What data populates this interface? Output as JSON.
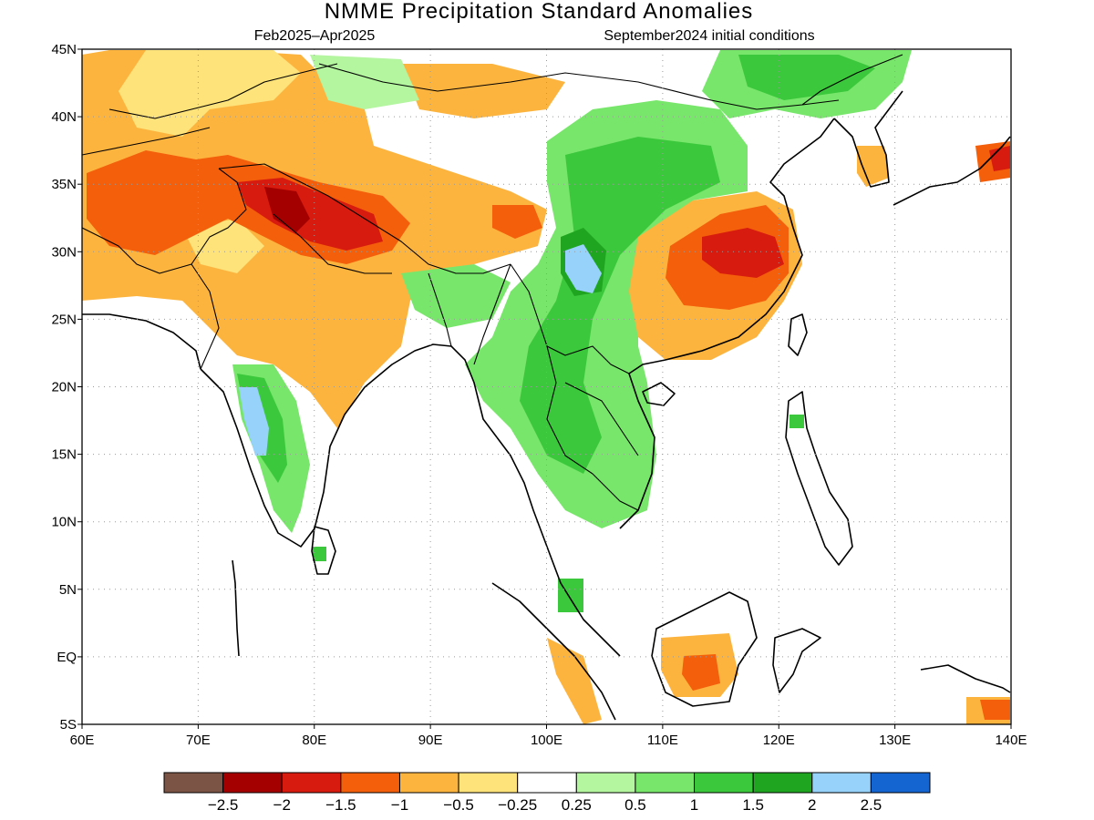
{
  "title": "NMME Precipitation Standard Anomalies",
  "subtitle_left": "Feb2025–Apr2025",
  "subtitle_right": "September2024 initial conditions",
  "map": {
    "lon_range": [
      60,
      140
    ],
    "lat_range": [
      -5,
      45
    ],
    "lon_ticks": [
      {
        "value": 60,
        "label": "60E"
      },
      {
        "value": 70,
        "label": "70E"
      },
      {
        "value": 80,
        "label": "80E"
      },
      {
        "value": 90,
        "label": "90E"
      },
      {
        "value": 100,
        "label": "100E"
      },
      {
        "value": 110,
        "label": "110E"
      },
      {
        "value": 120,
        "label": "120E"
      },
      {
        "value": 130,
        "label": "130E"
      },
      {
        "value": 140,
        "label": "140E"
      }
    ],
    "lat_ticks": [
      {
        "value": 45,
        "label": "45N"
      },
      {
        "value": 40,
        "label": "40N"
      },
      {
        "value": 35,
        "label": "35N"
      },
      {
        "value": 30,
        "label": "30N"
      },
      {
        "value": 25,
        "label": "25N"
      },
      {
        "value": 20,
        "label": "20N"
      },
      {
        "value": 15,
        "label": "15N"
      },
      {
        "value": 10,
        "label": "10N"
      },
      {
        "value": 5,
        "label": "5N"
      },
      {
        "value": 0,
        "label": "EQ"
      },
      {
        "value": -5,
        "label": "5S"
      }
    ],
    "grid": "dotted"
  },
  "colorbar": {
    "colors": [
      "#7b5446",
      "#a50000",
      "#d71b0e",
      "#f45f0b",
      "#fdb43f",
      "#fee27a",
      "#ffffff",
      "#b4f5a0",
      "#78e66b",
      "#3cc83c",
      "#1fa51f",
      "#96d2fa",
      "#1464d2"
    ],
    "labels": [
      "−2.5",
      "−2",
      "−1.5",
      "−1",
      "−0.5",
      "−0.25",
      "0.25",
      "0.5",
      "1",
      "1.5",
      "2",
      "2.5"
    ]
  }
}
